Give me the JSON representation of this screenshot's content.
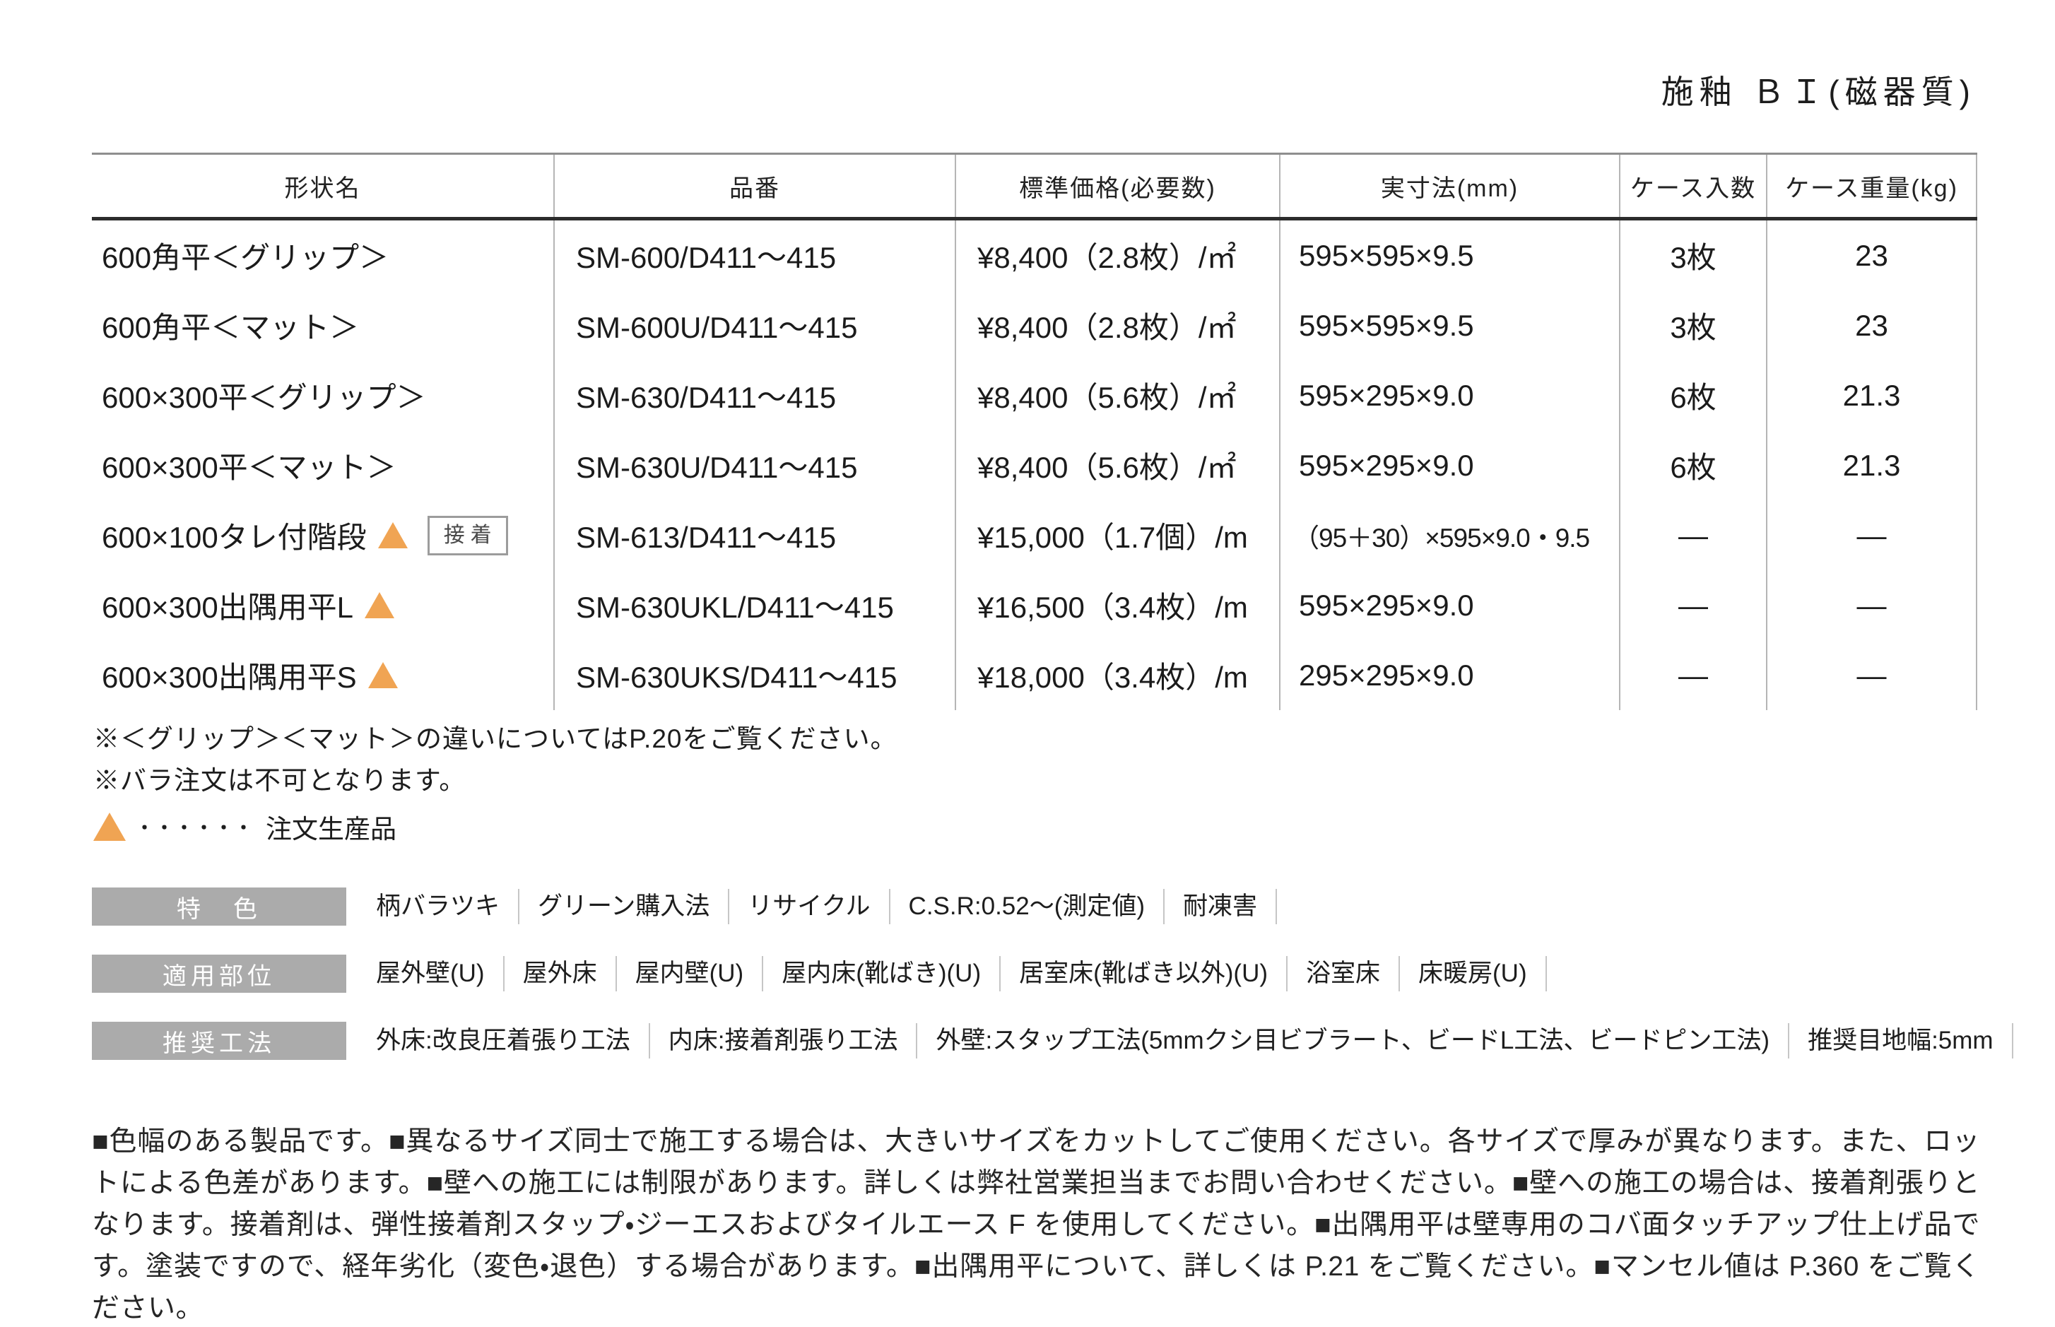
{
  "page": {
    "title": "施釉 ＢＩ(磁器質)"
  },
  "colors": {
    "accent_triangle": "#f0a453",
    "feature_label_bg": "#ababab",
    "table_rule_dark": "#2c2c2c",
    "table_rule_light": "#b5b5b5"
  },
  "table": {
    "headers": [
      "形状名",
      "品番",
      "標準価格(必要数)",
      "実寸法(mm)",
      "ケース入数",
      "ケース重量(kg)"
    ],
    "badge_label": "接着",
    "rows": [
      {
        "shape": "600角平＜グリップ＞",
        "order_production": false,
        "code": "SM-600/D411〜415",
        "price": "¥8,400（2.8枚）/㎡",
        "size": "595×595×9.5",
        "qty": "3枚",
        "weight": "23"
      },
      {
        "shape": "600角平＜マット＞",
        "order_production": false,
        "code": "SM-600U/D411〜415",
        "price": "¥8,400（2.8枚）/㎡",
        "size": "595×595×9.5",
        "qty": "3枚",
        "weight": "23"
      },
      {
        "shape": "600×300平＜グリップ＞",
        "order_production": false,
        "code": "SM-630/D411〜415",
        "price": "¥8,400（5.6枚）/㎡",
        "size": "595×295×9.0",
        "qty": "6枚",
        "weight": "21.3"
      },
      {
        "shape": "600×300平＜マット＞",
        "order_production": false,
        "code": "SM-630U/D411〜415",
        "price": "¥8,400（5.6枚）/㎡",
        "size": "595×295×9.0",
        "qty": "6枚",
        "weight": "21.3"
      },
      {
        "shape": "600×100タレ付階段",
        "order_production": true,
        "adhesive_badge": true,
        "code": "SM-613/D411〜415",
        "price": "¥15,000（1.7個）/m",
        "size": "（95＋30）×595×9.0・9.5",
        "qty": "—",
        "weight": "—"
      },
      {
        "shape": "600×300出隅用平L",
        "order_production": true,
        "code": "SM-630UKL/D411〜415",
        "price": "¥16,500（3.4枚）/m",
        "size": "595×295×9.0",
        "qty": "—",
        "weight": "—"
      },
      {
        "shape": "600×300出隅用平S",
        "order_production": true,
        "code": "SM-630UKS/D411〜415",
        "price": "¥18,000（3.4枚）/m",
        "size": "295×295×9.0",
        "qty": "—",
        "weight": "—"
      }
    ]
  },
  "notes": {
    "note1": "※＜グリップ＞＜マット＞の違いについてはP.20をご覧ください。",
    "note2": "※バラ注文は不可となります。",
    "legend_dots": "・・・・・・",
    "legend_text": "注文生産品"
  },
  "features": [
    {
      "label": "特　色",
      "items": [
        "柄バラツキ",
        "グリーン購入法",
        "リサイクル",
        "C.S.R:0.52〜(測定値)",
        "耐凍害"
      ]
    },
    {
      "label": "適用部位",
      "items": [
        "屋外壁(U)",
        "屋外床",
        "屋内壁(U)",
        "屋内床(靴ばき)(U)",
        "居室床(靴ばき以外)(U)",
        "浴室床",
        "床暖房(U)"
      ]
    },
    {
      "label": "推奨工法",
      "items": [
        "外床:改良圧着張り工法",
        "内床:接着剤張り工法",
        "外壁:スタップ工法(5mmクシ目ビブラート、ビードL工法、ビードピン工法)",
        "推奨目地幅:5mm"
      ]
    }
  ],
  "footer": {
    "text": "■色幅のある製品です。■異なるサイズ同士で施工する場合は、大きいサイズをカットしてご使用ください。各サイズで厚みが異なります。また、ロットによる色差があります。■壁への施工には制限があります。詳しくは弊社営業担当までお問い合わせください。■壁への施工の場合は、接着剤張りとなります。接着剤は、弾性接着剤スタップ・ジーエスおよびタイルエース F を使用してください。■出隅用平は壁専用のコバ面タッチアップ仕上げ品です。塗装ですので、経年劣化（変色・退色）する場合があります。■出隅用平について、詳しくは P.21 をご覧ください。■マンセル値は P.360 をご覧ください。"
  }
}
